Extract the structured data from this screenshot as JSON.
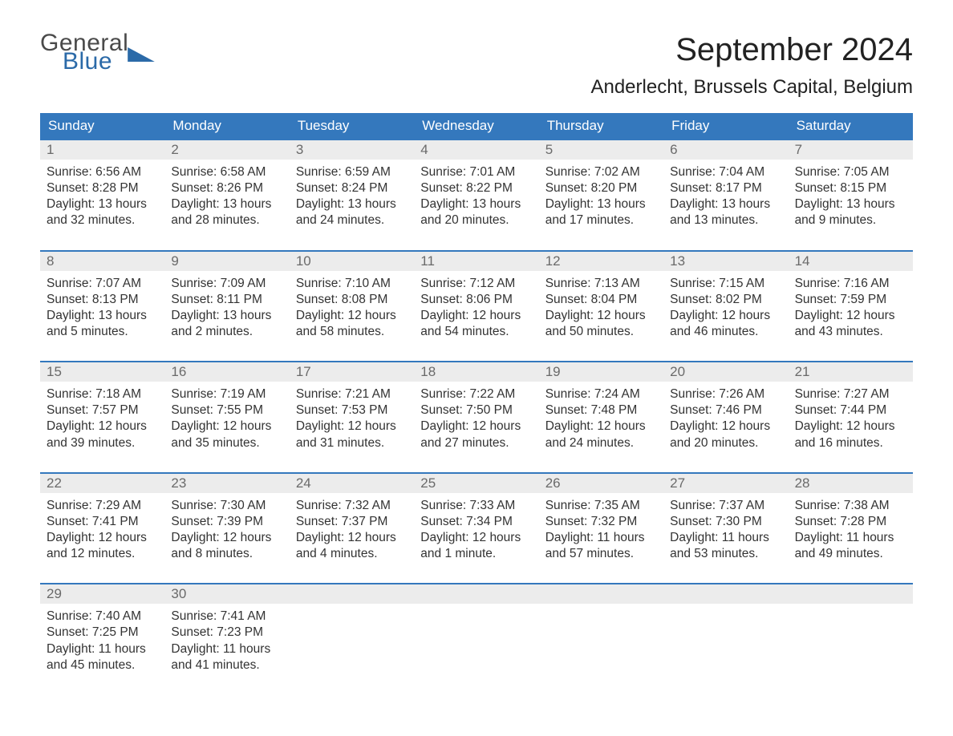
{
  "brand": {
    "part1": "General",
    "part2": "Blue"
  },
  "title": "September 2024",
  "location": "Anderlecht, Brussels Capital, Belgium",
  "colors": {
    "header_bg": "#3478bd",
    "header_text": "#ffffff",
    "daynum_bg": "#ececec",
    "daynum_text": "#6a6a6a",
    "week_border": "#3478bd",
    "body_text": "#333333",
    "background": "#ffffff"
  },
  "typography": {
    "title_fontsize": 40,
    "location_fontsize": 24,
    "header_fontsize": 17,
    "cell_fontsize": 15.5
  },
  "layout": {
    "columns": 7,
    "rows": 5
  },
  "day_names": [
    "Sunday",
    "Monday",
    "Tuesday",
    "Wednesday",
    "Thursday",
    "Friday",
    "Saturday"
  ],
  "labels": {
    "sunrise": "Sunrise:",
    "sunset": "Sunset:",
    "daylight": "Daylight:"
  },
  "weeks": [
    [
      {
        "n": "1",
        "sunrise": "6:56 AM",
        "sunset": "8:28 PM",
        "daylight1": "13 hours",
        "daylight2": "and 32 minutes."
      },
      {
        "n": "2",
        "sunrise": "6:58 AM",
        "sunset": "8:26 PM",
        "daylight1": "13 hours",
        "daylight2": "and 28 minutes."
      },
      {
        "n": "3",
        "sunrise": "6:59 AM",
        "sunset": "8:24 PM",
        "daylight1": "13 hours",
        "daylight2": "and 24 minutes."
      },
      {
        "n": "4",
        "sunrise": "7:01 AM",
        "sunset": "8:22 PM",
        "daylight1": "13 hours",
        "daylight2": "and 20 minutes."
      },
      {
        "n": "5",
        "sunrise": "7:02 AM",
        "sunset": "8:20 PM",
        "daylight1": "13 hours",
        "daylight2": "and 17 minutes."
      },
      {
        "n": "6",
        "sunrise": "7:04 AM",
        "sunset": "8:17 PM",
        "daylight1": "13 hours",
        "daylight2": "and 13 minutes."
      },
      {
        "n": "7",
        "sunrise": "7:05 AM",
        "sunset": "8:15 PM",
        "daylight1": "13 hours",
        "daylight2": "and 9 minutes."
      }
    ],
    [
      {
        "n": "8",
        "sunrise": "7:07 AM",
        "sunset": "8:13 PM",
        "daylight1": "13 hours",
        "daylight2": "and 5 minutes."
      },
      {
        "n": "9",
        "sunrise": "7:09 AM",
        "sunset": "8:11 PM",
        "daylight1": "13 hours",
        "daylight2": "and 2 minutes."
      },
      {
        "n": "10",
        "sunrise": "7:10 AM",
        "sunset": "8:08 PM",
        "daylight1": "12 hours",
        "daylight2": "and 58 minutes."
      },
      {
        "n": "11",
        "sunrise": "7:12 AM",
        "sunset": "8:06 PM",
        "daylight1": "12 hours",
        "daylight2": "and 54 minutes."
      },
      {
        "n": "12",
        "sunrise": "7:13 AM",
        "sunset": "8:04 PM",
        "daylight1": "12 hours",
        "daylight2": "and 50 minutes."
      },
      {
        "n": "13",
        "sunrise": "7:15 AM",
        "sunset": "8:02 PM",
        "daylight1": "12 hours",
        "daylight2": "and 46 minutes."
      },
      {
        "n": "14",
        "sunrise": "7:16 AM",
        "sunset": "7:59 PM",
        "daylight1": "12 hours",
        "daylight2": "and 43 minutes."
      }
    ],
    [
      {
        "n": "15",
        "sunrise": "7:18 AM",
        "sunset": "7:57 PM",
        "daylight1": "12 hours",
        "daylight2": "and 39 minutes."
      },
      {
        "n": "16",
        "sunrise": "7:19 AM",
        "sunset": "7:55 PM",
        "daylight1": "12 hours",
        "daylight2": "and 35 minutes."
      },
      {
        "n": "17",
        "sunrise": "7:21 AM",
        "sunset": "7:53 PM",
        "daylight1": "12 hours",
        "daylight2": "and 31 minutes."
      },
      {
        "n": "18",
        "sunrise": "7:22 AM",
        "sunset": "7:50 PM",
        "daylight1": "12 hours",
        "daylight2": "and 27 minutes."
      },
      {
        "n": "19",
        "sunrise": "7:24 AM",
        "sunset": "7:48 PM",
        "daylight1": "12 hours",
        "daylight2": "and 24 minutes."
      },
      {
        "n": "20",
        "sunrise": "7:26 AM",
        "sunset": "7:46 PM",
        "daylight1": "12 hours",
        "daylight2": "and 20 minutes."
      },
      {
        "n": "21",
        "sunrise": "7:27 AM",
        "sunset": "7:44 PM",
        "daylight1": "12 hours",
        "daylight2": "and 16 minutes."
      }
    ],
    [
      {
        "n": "22",
        "sunrise": "7:29 AM",
        "sunset": "7:41 PM",
        "daylight1": "12 hours",
        "daylight2": "and 12 minutes."
      },
      {
        "n": "23",
        "sunrise": "7:30 AM",
        "sunset": "7:39 PM",
        "daylight1": "12 hours",
        "daylight2": "and 8 minutes."
      },
      {
        "n": "24",
        "sunrise": "7:32 AM",
        "sunset": "7:37 PM",
        "daylight1": "12 hours",
        "daylight2": "and 4 minutes."
      },
      {
        "n": "25",
        "sunrise": "7:33 AM",
        "sunset": "7:34 PM",
        "daylight1": "12 hours",
        "daylight2": "and 1 minute."
      },
      {
        "n": "26",
        "sunrise": "7:35 AM",
        "sunset": "7:32 PM",
        "daylight1": "11 hours",
        "daylight2": "and 57 minutes."
      },
      {
        "n": "27",
        "sunrise": "7:37 AM",
        "sunset": "7:30 PM",
        "daylight1": "11 hours",
        "daylight2": "and 53 minutes."
      },
      {
        "n": "28",
        "sunrise": "7:38 AM",
        "sunset": "7:28 PM",
        "daylight1": "11 hours",
        "daylight2": "and 49 minutes."
      }
    ],
    [
      {
        "n": "29",
        "sunrise": "7:40 AM",
        "sunset": "7:25 PM",
        "daylight1": "11 hours",
        "daylight2": "and 45 minutes."
      },
      {
        "n": "30",
        "sunrise": "7:41 AM",
        "sunset": "7:23 PM",
        "daylight1": "11 hours",
        "daylight2": "and 41 minutes."
      },
      null,
      null,
      null,
      null,
      null
    ]
  ]
}
